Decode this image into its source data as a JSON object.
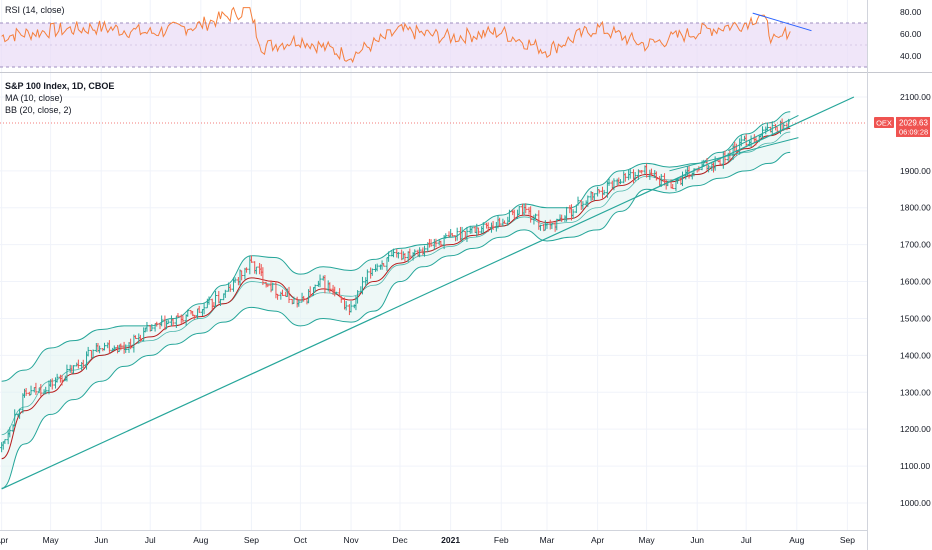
{
  "rsi_pane": {
    "label": "RSI (14, close)",
    "ticks": [
      "80.00",
      "60.00",
      "40.00"
    ],
    "tick_values": [
      80,
      60,
      40
    ],
    "band_upper": 70,
    "band_lower": 30,
    "ylim": [
      25,
      85
    ],
    "colors": {
      "line": "#f57f3c",
      "band": "#e9dcf7",
      "band_border": "#9e8dbf",
      "trend": "#2962ff"
    }
  },
  "price_pane": {
    "title": "S&P 100 Index, 1D, CBOE",
    "ma_label": "MA (10, close)",
    "bb_label": "BB (20, close, 2)",
    "ticks": [
      "2100.00",
      "1900.00",
      "1800.00",
      "1700.00",
      "1600.00",
      "1500.00",
      "1400.00",
      "1300.00",
      "1200.00",
      "1100.00",
      "1000.00"
    ],
    "tick_values": [
      2100,
      1900,
      1800,
      1700,
      1600,
      1500,
      1400,
      1300,
      1200,
      1100,
      1000
    ],
    "ylim": [
      960,
      2130
    ],
    "last_price": {
      "symbol": "OEX",
      "value": "2029.63",
      "countdown": "06:09:28",
      "price": 2029.63,
      "color": "#ef5350"
    },
    "colors": {
      "up": "#26a69a",
      "down": "#ef5350",
      "ma": "#b71c1c",
      "bb_line": "#26a69a",
      "bb_fill": "#e0f2f1",
      "trendline": "#26a69a"
    }
  },
  "time_axis": {
    "labels": [
      "Apr",
      "May",
      "Jun",
      "Jul",
      "Aug",
      "Sep",
      "Oct",
      "Nov",
      "Dec",
      "2021",
      "Feb",
      "Mar",
      "Apr",
      "May",
      "Jun",
      "Jul",
      "Aug",
      "Sep"
    ],
    "bold_label": "2021"
  },
  "chart_data": {
    "type": "line",
    "title": "S&P 100 Index, 1D, CBOE",
    "x": [
      "2020-04-01",
      "2020-04-15",
      "2020-05-01",
      "2020-05-15",
      "2020-06-01",
      "2020-06-15",
      "2020-07-01",
      "2020-07-15",
      "2020-08-01",
      "2020-08-15",
      "2020-09-01",
      "2020-09-15",
      "2020-10-01",
      "2020-10-15",
      "2020-11-01",
      "2020-11-15",
      "2020-12-01",
      "2020-12-15",
      "2021-01-01",
      "2021-01-15",
      "2021-02-01",
      "2021-02-15",
      "2021-03-01",
      "2021-03-15",
      "2021-04-01",
      "2021-04-15",
      "2021-05-01",
      "2021-05-15",
      "2021-06-01",
      "2021-06-15",
      "2021-07-01",
      "2021-07-15",
      "2021-07-28"
    ],
    "series": [
      {
        "name": "S&P 100 Index",
        "values": [
          1150,
          1290,
          1320,
          1360,
          1430,
          1420,
          1470,
          1490,
          1520,
          1560,
          1650,
          1580,
          1540,
          1600,
          1520,
          1640,
          1670,
          1690,
          1720,
          1740,
          1760,
          1800,
          1740,
          1790,
          1840,
          1880,
          1900,
          1860,
          1900,
          1930,
          1980,
          2010,
          2030
        ]
      },
      {
        "name": "MA (10, close)",
        "values": [
          1120,
          1250,
          1300,
          1350,
          1400,
          1420,
          1450,
          1480,
          1505,
          1540,
          1610,
          1600,
          1550,
          1580,
          1550,
          1600,
          1650,
          1680,
          1700,
          1725,
          1750,
          1780,
          1760,
          1770,
          1820,
          1860,
          1890,
          1870,
          1890,
          1915,
          1960,
          1995,
          2015
        ]
      },
      {
        "name": "BB (20, close, 2) upper",
        "values": [
          1330,
          1360,
          1420,
          1440,
          1470,
          1480,
          1480,
          1500,
          1540,
          1590,
          1670,
          1665,
          1620,
          1640,
          1630,
          1660,
          1690,
          1700,
          1720,
          1750,
          1780,
          1810,
          1800,
          1800,
          1860,
          1900,
          1920,
          1910,
          1920,
          1950,
          2000,
          2030,
          2060
        ]
      },
      {
        "name": "BB (20, close, 2) lower",
        "values": [
          1040,
          1160,
          1240,
          1280,
          1330,
          1370,
          1400,
          1430,
          1460,
          1490,
          1530,
          1520,
          1480,
          1500,
          1490,
          1520,
          1600,
          1640,
          1670,
          1690,
          1720,
          1740,
          1710,
          1720,
          1740,
          1790,
          1850,
          1840,
          1860,
          1880,
          1900,
          1920,
          1950
        ]
      }
    ],
    "rsi": {
      "x": [
        "2020-04-01",
        "2020-05-01",
        "2020-06-01",
        "2020-07-01",
        "2020-08-01",
        "2020-08-31",
        "2020-09-08",
        "2020-10-01",
        "2020-11-01",
        "2020-12-01",
        "2021-01-01",
        "2021-02-01",
        "2021-03-01",
        "2021-04-01",
        "2021-05-01",
        "2021-06-01",
        "2021-07-01",
        "2021-07-10",
        "2021-07-20",
        "2021-07-28"
      ],
      "values": [
        58,
        63,
        66,
        61,
        68,
        83,
        48,
        55,
        40,
        63,
        57,
        62,
        45,
        66,
        50,
        62,
        70,
        78,
        50,
        65
      ]
    },
    "trendline": {
      "x": [
        "2020-04-01",
        "2021-09-05"
      ],
      "y": [
        1038,
        2100
      ]
    },
    "ylim": [
      960,
      2130
    ],
    "xlabel": "",
    "ylabel": "",
    "grid": true
  }
}
